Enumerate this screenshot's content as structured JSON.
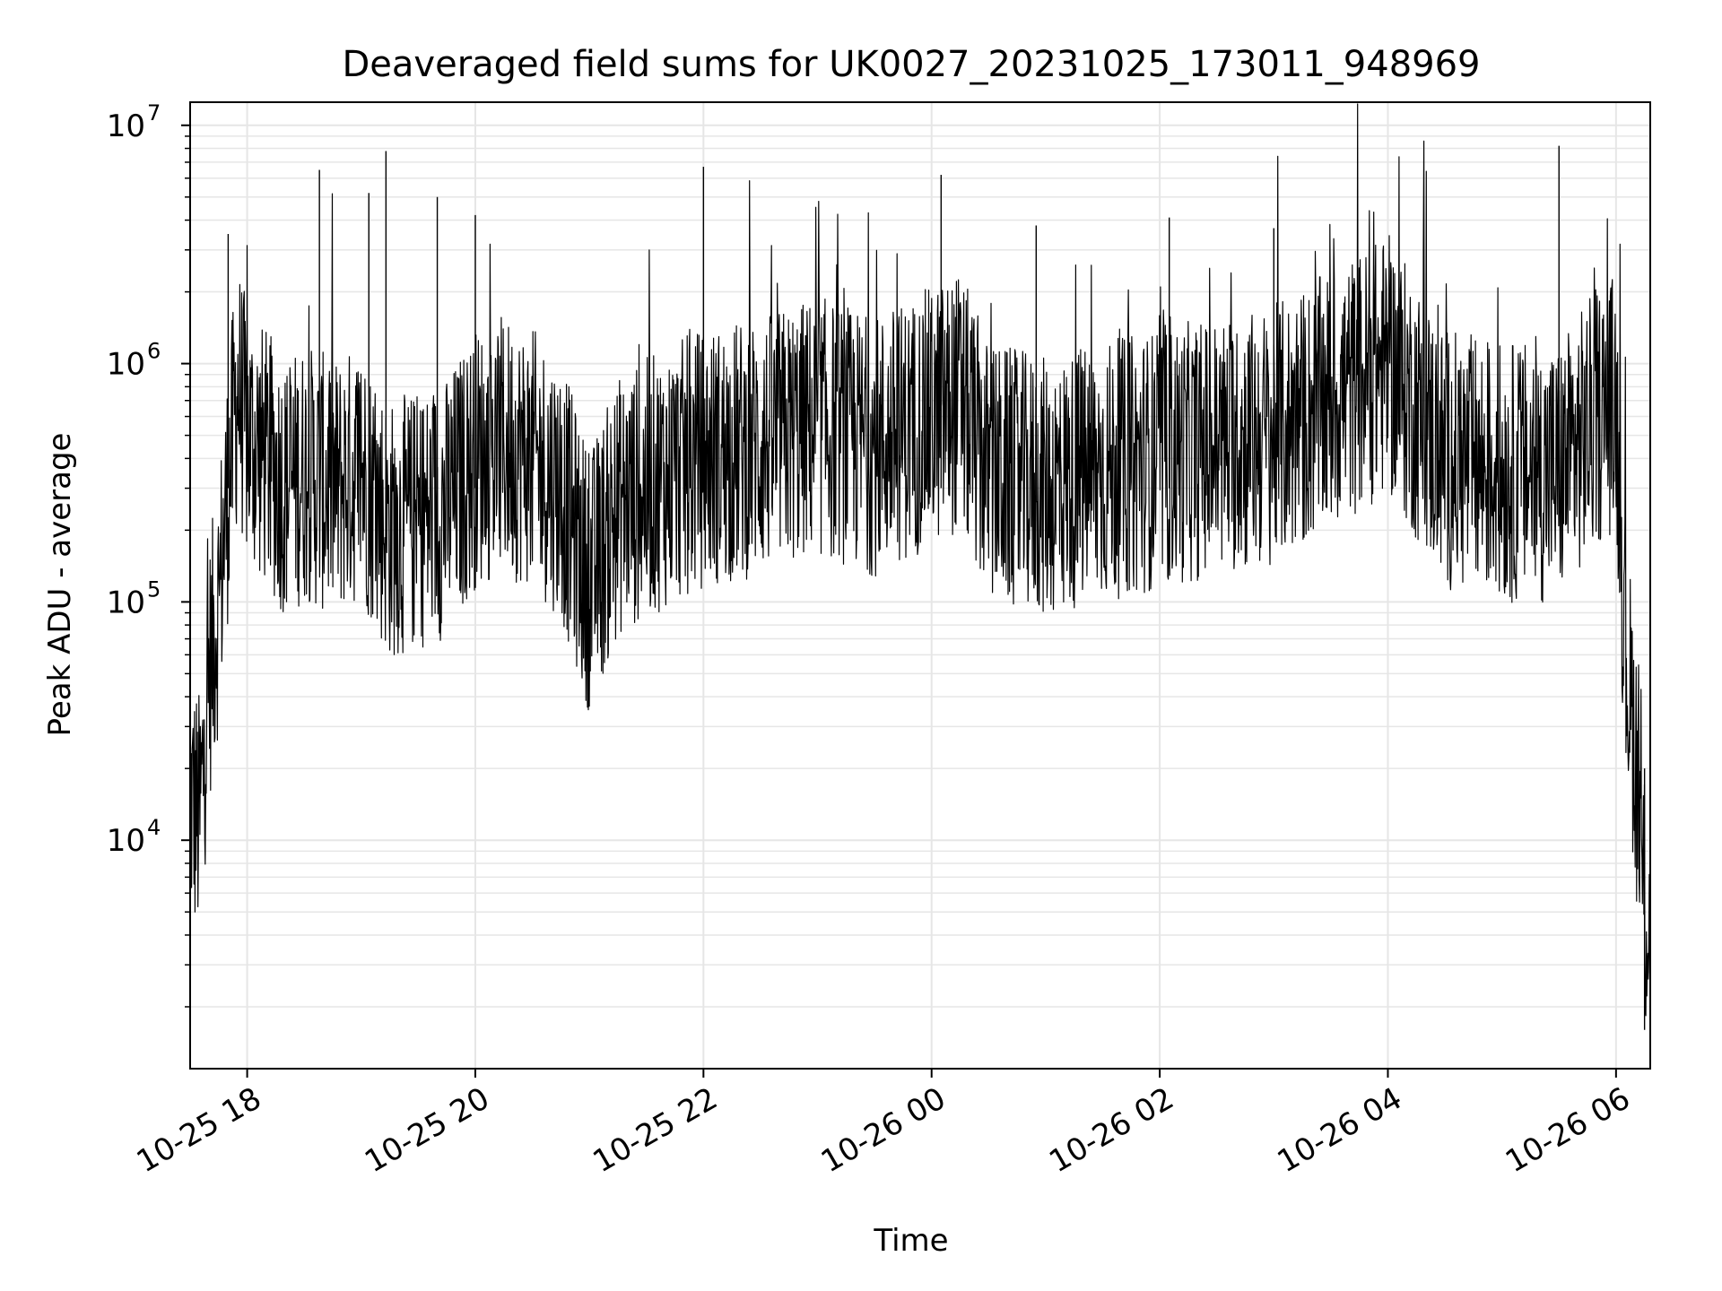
{
  "chart_data": {
    "type": "line",
    "title": "Deaveraged field sums for UK0027_20231025_173011_948969",
    "xlabel": "Time",
    "ylabel": "Peak ADU - average",
    "y_scale": "log",
    "ylim": [
      1100,
      12500000
    ],
    "xlim": [
      "2023-10-25 17:30",
      "2023-10-26 06:18"
    ],
    "grid": true,
    "line_color": "#000000",
    "grid_color": "#e6e6e6",
    "x_ticks": [
      {
        "value": "2023-10-25 18:00",
        "label": "10-25 18"
      },
      {
        "value": "2023-10-25 20:00",
        "label": "10-25 20"
      },
      {
        "value": "2023-10-25 22:00",
        "label": "10-25 22"
      },
      {
        "value": "2023-10-26 00:00",
        "label": "10-26 00"
      },
      {
        "value": "2023-10-26 02:00",
        "label": "10-26 02"
      },
      {
        "value": "2023-10-26 04:00",
        "label": "10-26 04"
      },
      {
        "value": "2023-10-26 06:00",
        "label": "10-26 06"
      }
    ],
    "y_ticks": [
      {
        "value": 10000,
        "base": "10",
        "exp": "4"
      },
      {
        "value": 100000,
        "base": "10",
        "exp": "5"
      },
      {
        "value": 1000000,
        "base": "10",
        "exp": "6"
      },
      {
        "value": 10000000,
        "base": "10",
        "exp": "7"
      }
    ],
    "series": [
      {
        "x": [
          "2023-10-25 17:30",
          "2023-10-25 17:35",
          "2023-10-25 17:40",
          "2023-10-25 17:45",
          "2023-10-25 17:50",
          "2023-10-25 17:55",
          "2023-10-25 18:00",
          "2023-10-25 18:10",
          "2023-10-25 18:20",
          "2023-10-25 18:30",
          "2023-10-25 18:45",
          "2023-10-25 19:00",
          "2023-10-25 19:15",
          "2023-10-25 19:30",
          "2023-10-25 19:45",
          "2023-10-25 20:00",
          "2023-10-25 20:15",
          "2023-10-25 20:30",
          "2023-10-25 20:45",
          "2023-10-25 21:00",
          "2023-10-25 21:15",
          "2023-10-25 21:30",
          "2023-10-25 21:45",
          "2023-10-25 22:00",
          "2023-10-25 22:30",
          "2023-10-25 23:00",
          "2023-10-25 23:30",
          "2023-10-26 00:00",
          "2023-10-26 00:15",
          "2023-10-26 00:30",
          "2023-10-26 01:00",
          "2023-10-26 01:30",
          "2023-10-26 02:00",
          "2023-10-26 02:30",
          "2023-10-26 03:00",
          "2023-10-26 03:30",
          "2023-10-26 04:00",
          "2023-10-26 04:30",
          "2023-10-26 05:00",
          "2023-10-26 05:30",
          "2023-10-26 05:50",
          "2023-10-26 06:00",
          "2023-10-26 06:05",
          "2023-10-26 06:10",
          "2023-10-26 06:15"
        ],
        "y": [
          15000,
          12000,
          50000,
          100000,
          300000,
          800000,
          500000,
          400000,
          300000,
          350000,
          300000,
          350000,
          200000,
          220000,
          250000,
          400000,
          450000,
          400000,
          300000,
          120000,
          250000,
          300000,
          350000,
          400000,
          450000,
          550000,
          450000,
          600000,
          700000,
          350000,
          300000,
          350000,
          400000,
          450000,
          500000,
          700000,
          1000000,
          400000,
          350000,
          350000,
          600000,
          700000,
          60000,
          25000,
          5000
        ],
        "spikes": [
          {
            "x": "2023-10-25 17:50",
            "y": 3500000
          },
          {
            "x": "2023-10-25 18:38",
            "y": 6500000
          },
          {
            "x": "2023-10-25 19:04",
            "y": 5200000
          },
          {
            "x": "2023-10-25 19:13",
            "y": 7800000
          },
          {
            "x": "2023-10-25 19:40",
            "y": 5000000
          },
          {
            "x": "2023-10-25 20:00",
            "y": 4200000
          },
          {
            "x": "2023-10-25 22:00",
            "y": 6700000
          },
          {
            "x": "2023-10-26 00:05",
            "y": 6200000
          },
          {
            "x": "2023-10-26 00:55",
            "y": 3800000
          },
          {
            "x": "2023-10-26 02:05",
            "y": 4100000
          },
          {
            "x": "2023-10-26 03:00",
            "y": 3700000
          },
          {
            "x": "2023-10-26 05:30",
            "y": 8200000
          },
          {
            "x": "2023-10-26 06:15",
            "y": 1600
          }
        ]
      }
    ]
  }
}
